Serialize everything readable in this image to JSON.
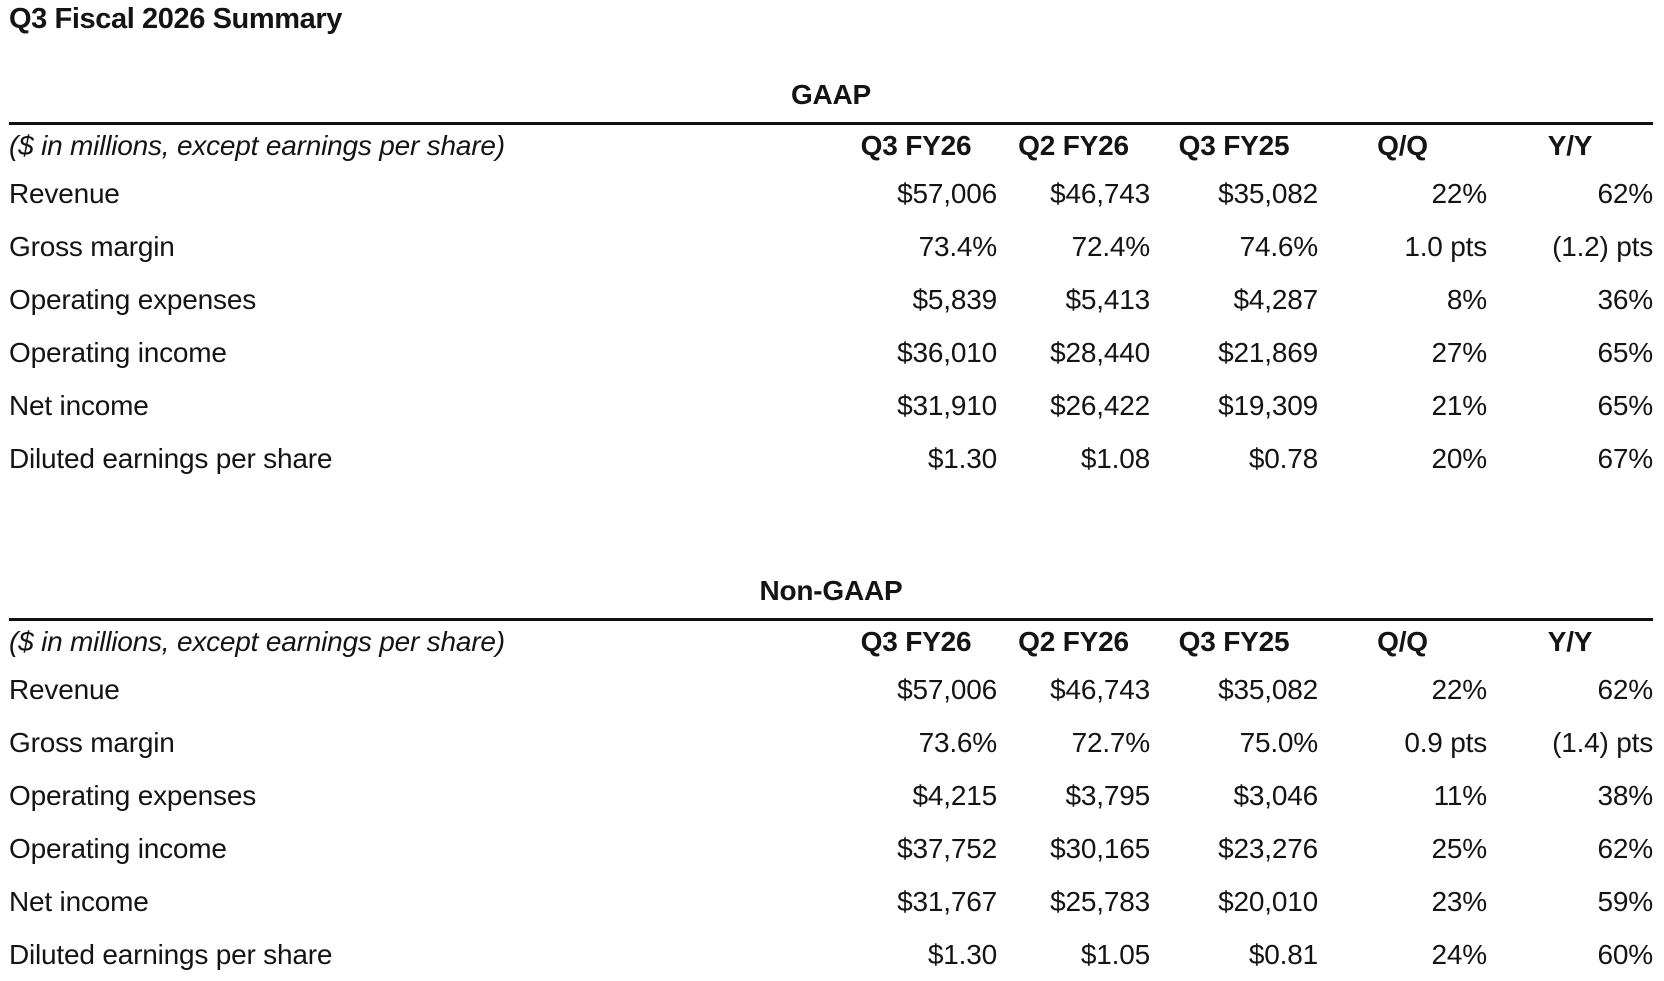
{
  "page": {
    "title": "Q3 Fiscal 2026 Summary"
  },
  "ui": {
    "text_color": "#141414",
    "rule_color": "#101010",
    "background_color": "#ffffff"
  },
  "tables": [
    {
      "heading": "GAAP",
      "note": "($ in millions, except earnings per share)",
      "columns": [
        "Q3 FY26",
        "Q2 FY26",
        "Q3 FY25",
        "Q/Q",
        "Y/Y"
      ],
      "rows": [
        {
          "label": "Revenue",
          "values": [
            "$57,006",
            "$46,743",
            "$35,082",
            "22%",
            "62%"
          ]
        },
        {
          "label": "Gross margin",
          "values": [
            "73.4%",
            "72.4%",
            "74.6%",
            "1.0 pts",
            "(1.2) pts"
          ]
        },
        {
          "label": "Operating expenses",
          "values": [
            "$5,839",
            "$5,413",
            "$4,287",
            "8%",
            "36%"
          ]
        },
        {
          "label": "Operating income",
          "values": [
            "$36,010",
            "$28,440",
            "$21,869",
            "27%",
            "65%"
          ]
        },
        {
          "label": "Net income",
          "values": [
            "$31,910",
            "$26,422",
            "$19,309",
            "21%",
            "65%"
          ]
        },
        {
          "label": "Diluted earnings per share",
          "values": [
            "$1.30",
            "$1.08",
            "$0.78",
            "20%",
            "67%"
          ]
        }
      ]
    },
    {
      "heading": "Non-GAAP",
      "note": "($ in millions, except earnings per share)",
      "columns": [
        "Q3 FY26",
        "Q2 FY26",
        "Q3 FY25",
        "Q/Q",
        "Y/Y"
      ],
      "rows": [
        {
          "label": "Revenue",
          "values": [
            "$57,006",
            "$46,743",
            "$35,082",
            "22%",
            "62%"
          ]
        },
        {
          "label": "Gross margin",
          "values": [
            "73.6%",
            "72.7%",
            "75.0%",
            "0.9 pts",
            "(1.4) pts"
          ]
        },
        {
          "label": "Operating expenses",
          "values": [
            "$4,215",
            "$3,795",
            "$3,046",
            "11%",
            "38%"
          ]
        },
        {
          "label": "Operating income",
          "values": [
            "$37,752",
            "$30,165",
            "$23,276",
            "25%",
            "62%"
          ]
        },
        {
          "label": "Net income",
          "values": [
            "$31,767",
            "$25,783",
            "$20,010",
            "23%",
            "59%"
          ]
        },
        {
          "label": "Diluted earnings per share",
          "values": [
            "$1.30",
            "$1.05",
            "$0.81",
            "24%",
            "60%"
          ]
        }
      ]
    }
  ]
}
